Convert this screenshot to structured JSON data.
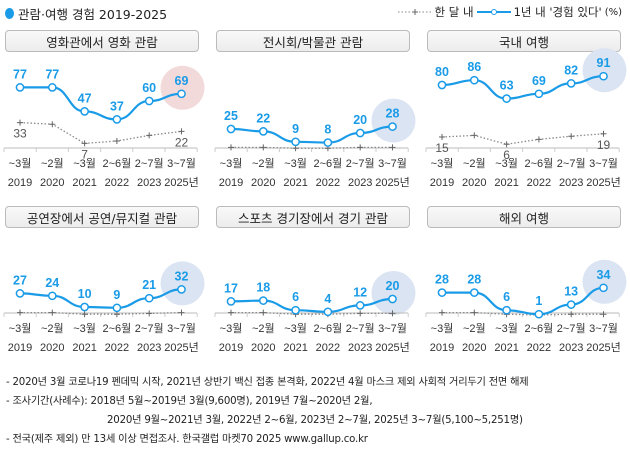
{
  "header": {
    "title": "관람·여행 경험 2019-2025",
    "legend_monthly": "한 달 내",
    "legend_yearly": "1년 내 '경험 있다'",
    "legend_unit": "(%)"
  },
  "colors": {
    "accent": "#1a9be8",
    "monthly": "#8a8a8a",
    "highlight_pink": "#f3dada",
    "highlight_blue": "#dbe4f2"
  },
  "chart_data": {
    "type": "line",
    "categories": [
      {
        "period": "~3월",
        "year": "2019"
      },
      {
        "period": "~2월",
        "year": "2020"
      },
      {
        "period": "~3월",
        "year": "2021"
      },
      {
        "period": "2~6월",
        "year": "2022"
      },
      {
        "period": "2~7월",
        "year": "2023"
      },
      {
        "period": "3~7월",
        "year": "2025년"
      }
    ],
    "ylim": [
      0,
      100
    ],
    "panels": [
      {
        "title": "영화관에서 영화 관람",
        "highlight": "pink",
        "series": [
          {
            "name": "1년 내 '경험 있다'",
            "values": [
              77,
              77,
              47,
              37,
              60,
              69
            ]
          },
          {
            "name": "한 달 내",
            "values": [
              33,
              31,
              7,
              10,
              17,
              22
            ],
            "labels": [
              "33",
              null,
              "7",
              null,
              null,
              "22"
            ]
          }
        ]
      },
      {
        "title": "전시회/박물관 관람",
        "highlight": "blue",
        "series": [
          {
            "name": "1년 내 '경험 있다'",
            "values": [
              25,
              22,
              9,
              8,
              20,
              28
            ]
          },
          {
            "name": "한 달 내",
            "values": [
              2,
              2,
              1,
              1,
              2,
              2
            ],
            "labels": [
              null,
              null,
              null,
              null,
              null,
              null
            ]
          }
        ]
      },
      {
        "title": "국내 여행",
        "highlight": "blue",
        "series": [
          {
            "name": "1년 내 '경험 있다'",
            "values": [
              80,
              86,
              63,
              69,
              82,
              91
            ]
          },
          {
            "name": "한 달 내",
            "values": [
              15,
              17,
              6,
              12,
              16,
              19
            ],
            "labels": [
              "15",
              null,
              "6",
              null,
              null,
              "19"
            ]
          }
        ]
      },
      {
        "title": "공연장에서 공연/뮤지컬 관람",
        "highlight": "blue",
        "series": [
          {
            "name": "1년 내 '경험 있다'",
            "values": [
              27,
              24,
              10,
              9,
              21,
              32
            ]
          },
          {
            "name": "한 달 내",
            "values": [
              3,
              3,
              1,
              1,
              2,
              3
            ],
            "labels": [
              null,
              null,
              null,
              null,
              null,
              null
            ]
          }
        ]
      },
      {
        "title": "스포츠 경기장에서 경기 관람",
        "highlight": "blue",
        "series": [
          {
            "name": "1년 내 '경험 있다'",
            "values": [
              17,
              18,
              6,
              4,
              12,
              20
            ]
          },
          {
            "name": "한 달 내",
            "values": [
              3,
              3,
              1,
              1,
              2,
              2
            ],
            "labels": [
              null,
              null,
              null,
              null,
              null,
              null
            ]
          }
        ]
      },
      {
        "title": "해외 여행",
        "highlight": "blue",
        "series": [
          {
            "name": "1년 내 '경험 있다'",
            "values": [
              28,
              28,
              6,
              1,
              13,
              34
            ]
          },
          {
            "name": "한 달 내",
            "values": [
              3,
              3,
              1,
              0,
              1,
              1
            ],
            "labels": [
              null,
              null,
              null,
              null,
              null,
              null
            ]
          }
        ]
      }
    ]
  },
  "notes": [
    "- 2020년 3월 코로나19 펜데믹 시작, 2021년 상반기 백신 접종 본격화, 2022년 4월 마스크 제외 사회적 거리두기 전면 해제",
    "- 조사기간(사례수):  2018년 5월~2019년 3월(9,600명), 2019년 7월~2020년 2월,",
    "2020년 9월~2021년 3월, 2022년 2~6월, 2023년 2~7월, 2025년 3~7월(5,100~5,251명)",
    "- 전국(제주 제외) 만 13세 이상 면접조사. 한국갤럽 마켓70 2025 www.gallup.co.kr"
  ]
}
